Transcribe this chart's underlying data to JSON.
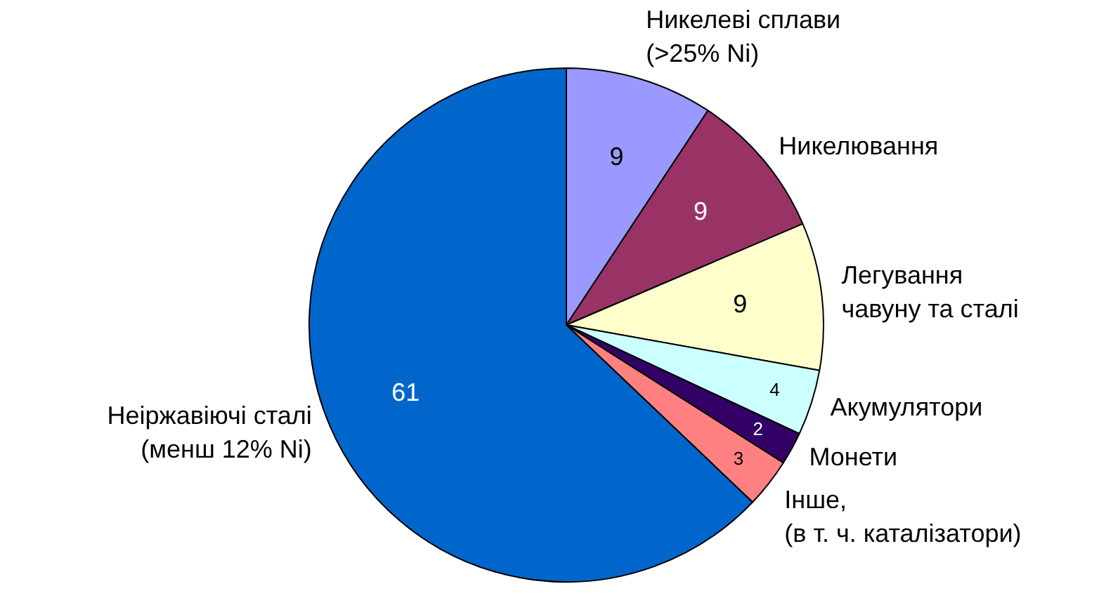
{
  "chart_data": {
    "type": "pie",
    "categories": [
      "Никелеві сплави\n(>25% Ni)",
      "Никелювання",
      "Легування\nчавуну та сталі",
      "Акумулятори",
      "Монети",
      "Інше,\n(в т. ч. каталізатори)",
      "Неіржавіючі сталі\n(менш 12% Ni)"
    ],
    "values": [
      9,
      9,
      9,
      4,
      2,
      3,
      61
    ],
    "colors": [
      "#9999ff",
      "#993366",
      "#ffffcc",
      "#ccffff",
      "#330066",
      "#ff8080",
      "#0066cc"
    ],
    "data_labels": true
  }
}
